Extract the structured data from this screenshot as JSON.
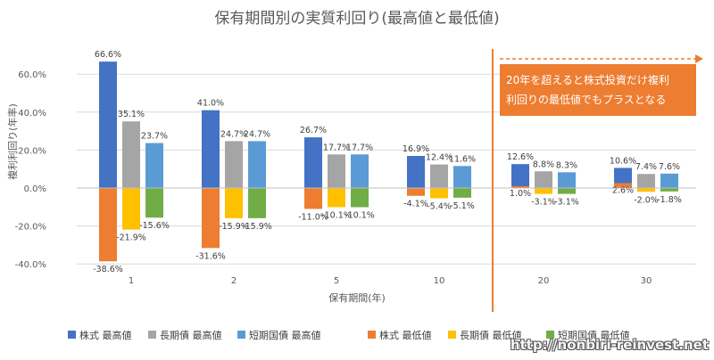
{
  "chart_data": {
    "type": "bar",
    "title": "保有期間別の実質利回り(最高値と最低値)",
    "xlabel": "保有期間(年)",
    "ylabel": "複利利回り(年率)",
    "ylim": [
      -40,
      70
    ],
    "yticks": [
      60,
      40,
      20,
      0,
      -20,
      -40
    ],
    "ytick_labels": [
      "60.0%",
      "40.0%",
      "20.0%",
      "0.0%",
      "-20.0%",
      "-40.0%"
    ],
    "grid": true,
    "legend_position": "bottom",
    "categories": [
      "1",
      "2",
      "5",
      "10",
      "20",
      "30"
    ],
    "series": [
      {
        "name": "株式 最高値",
        "color": "#4472c4",
        "values": [
          66.6,
          41.0,
          26.7,
          16.9,
          12.6,
          10.6
        ],
        "labels": [
          "66.6%",
          "41.0%",
          "26.7%",
          "16.9%",
          "12.6%",
          "10.6%"
        ]
      },
      {
        "name": "長期債 最高値",
        "color": "#a5a5a5",
        "values": [
          35.1,
          24.7,
          17.7,
          12.4,
          8.8,
          7.4
        ],
        "labels": [
          "35.1%",
          "24.7%",
          "17.7%",
          "12.4%",
          "8.8%",
          "7.4%"
        ]
      },
      {
        "name": "短期国債 最高値",
        "color": "#5b9bd5",
        "values": [
          23.7,
          24.7,
          17.7,
          11.6,
          8.3,
          7.6
        ],
        "labels": [
          "23.7%",
          "24.7%",
          "17.7%",
          "11.6%",
          "8.3%",
          "7.6%"
        ]
      },
      {
        "name": "株式 最低値",
        "color": "#ed7d31",
        "values": [
          -38.6,
          -31.6,
          -11.0,
          -4.1,
          1.0,
          2.6
        ],
        "labels": [
          "-38.6%",
          "-31.6%",
          "-11.0%",
          "-4.1%",
          "1.0%",
          "2.6%"
        ]
      },
      {
        "name": "長期債 最低値",
        "color": "#ffc000",
        "values": [
          -21.9,
          -15.9,
          -10.1,
          -5.4,
          -3.1,
          -2.0
        ],
        "labels": [
          "-21.9%",
          "-15.9%",
          "-10.1%",
          "-5.4%",
          "-3.1%",
          "-2.0%"
        ]
      },
      {
        "name": "短期国債 最低値",
        "color": "#70ad47",
        "values": [
          -15.6,
          -15.9,
          -10.1,
          -5.1,
          -3.1,
          -1.8
        ],
        "labels": [
          "-15.6%",
          "-15.9%",
          "-10.1%",
          "-5.1%",
          "-3.1%",
          "-1.8%"
        ]
      }
    ],
    "annotation": {
      "lines": [
        "20年を超えると株式投資だけ複利",
        "利回りの最低値でもプラスとなる"
      ],
      "color": "#ed7d31",
      "divider_between": [
        "10",
        "20"
      ]
    }
  },
  "watermark": "http://nonbiri-reinvest.net"
}
